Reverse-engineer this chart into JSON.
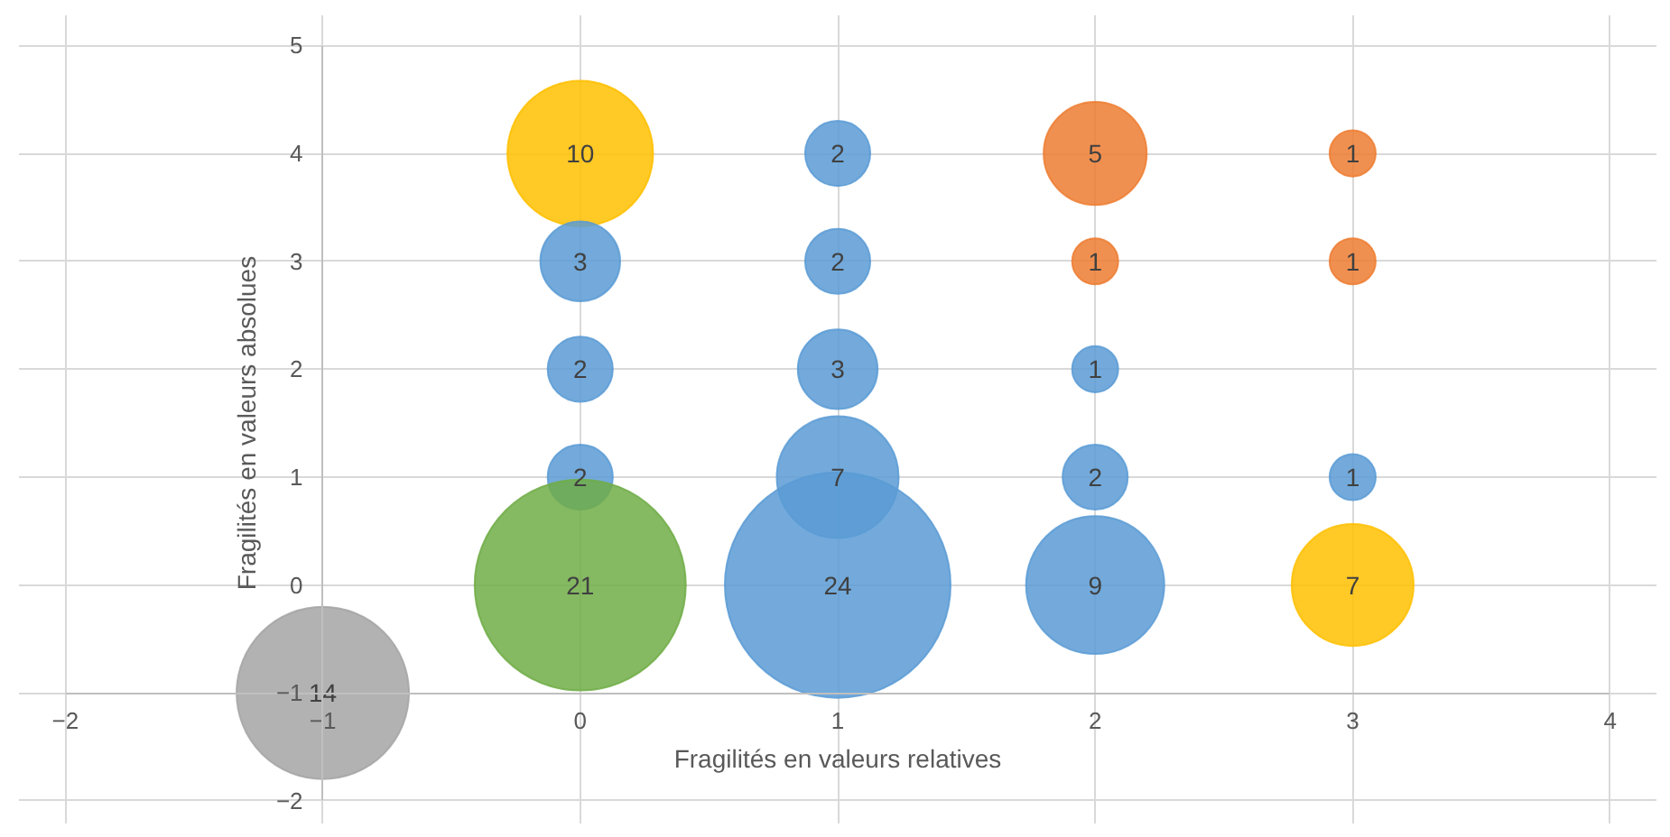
{
  "chart_data": {
    "type": "bubble",
    "xlabel": "Fragilités en valeurs relatives",
    "ylabel": "Fragilités en valeurs absolues",
    "x": [
      -1,
      0,
      0,
      0,
      0,
      0,
      1,
      1,
      1,
      1,
      1,
      2,
      2,
      2,
      2,
      2,
      3,
      3,
      3,
      3
    ],
    "values": [
      -1,
      4,
      3,
      2,
      1,
      0,
      4,
      3,
      2,
      1,
      0,
      4,
      3,
      2,
      1,
      0,
      4,
      3,
      1,
      0
    ],
    "sizes": [
      14,
      10,
      3,
      2,
      2,
      21,
      2,
      2,
      3,
      7,
      24,
      5,
      1,
      1,
      2,
      9,
      1,
      1,
      1,
      7
    ],
    "value_labels": [
      "14",
      "10",
      "3",
      "2",
      "2",
      "21",
      "2",
      "2",
      "3",
      "7",
      "24",
      "5",
      "1",
      "1",
      "2",
      "9",
      "1",
      "1",
      "1",
      "7"
    ],
    "colors": [
      "#a5a5a5",
      "#ffc000",
      "#5b9bd5",
      "#5b9bd5",
      "#5b9bd5",
      "#70ad47",
      "#5b9bd5",
      "#5b9bd5",
      "#5b9bd5",
      "#5b9bd5",
      "#5b9bd5",
      "#ed7d31",
      "#ed7d31",
      "#5b9bd5",
      "#5b9bd5",
      "#5b9bd5",
      "#ed7d31",
      "#ed7d31",
      "#5b9bd5",
      "#ffc000"
    ],
    "xlim": [
      -2,
      4
    ],
    "ylim": [
      -2,
      5
    ],
    "xticks": [
      -2,
      -1,
      0,
      1,
      2,
      3,
      4
    ],
    "yticks": [
      -2,
      -1,
      0,
      1,
      2,
      3,
      4,
      5
    ],
    "grid": true
  }
}
